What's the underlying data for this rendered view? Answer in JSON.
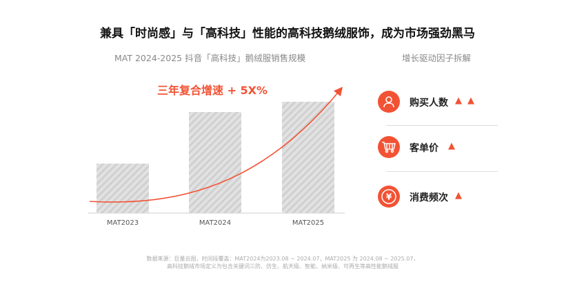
{
  "title": "兼具「时尚感」与「高科技」性能的高科技鹅绒服饰，成为市场强劲黑马",
  "left_subtitle": "MAT 2024-2025    抖音「高科技」鹅绒服销售规模",
  "right_subtitle": "增长驱动因子拆解",
  "annotation": "三年复合增速 + 5X%",
  "chart_data": {
    "type": "bar",
    "categories": [
      "MAT2023",
      "MAT2024",
      "MAT2025"
    ],
    "values": [
      72,
      147,
      162
    ],
    "title": "抖音「高科技」鹅绒服销售规模",
    "annotations": [
      "三年复合增速 + 5X%"
    ],
    "note": "relative bar heights; no value axis shown"
  },
  "factors": [
    {
      "label": "购买人数",
      "icon": "user-icon",
      "arrows": 2
    },
    {
      "label": "客单价",
      "icon": "cart-icon",
      "arrows": 1
    },
    {
      "label": "消费频次",
      "icon": "yen-icon",
      "arrows": 1
    }
  ],
  "note_lines": [
    "数据来源：巨量云图，时间段覆盖：MAT2024为2023.08 ~ 2024.07，MAT2025 为 2024.08 ~ 2025.07，",
    "高科技鹅绒市场定义为包含关键词三防、仿生、航天级、智能、纳米级、可再生等高性能鹅绒服"
  ],
  "colors": {
    "accent": "#f25234"
  }
}
